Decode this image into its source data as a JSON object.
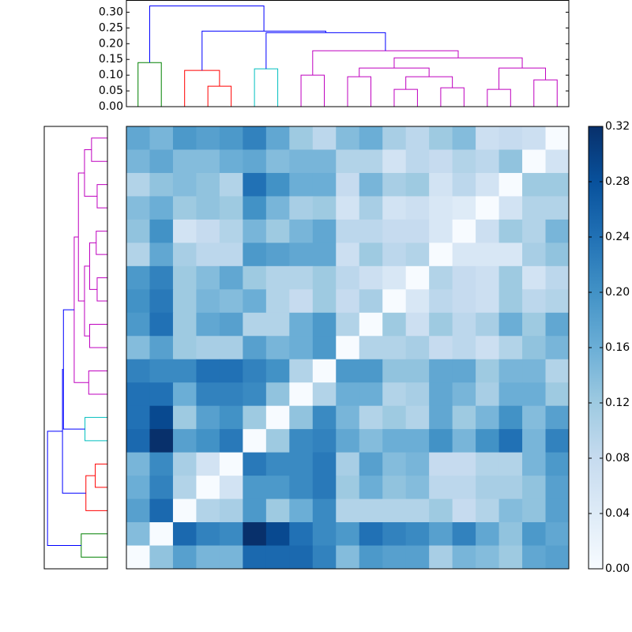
{
  "chart_data": {
    "type": "clustered-heatmap",
    "colormap": [
      "#f7fbff",
      "#deebf7",
      "#c6dbef",
      "#9ecae1",
      "#6baed6",
      "#4292c6",
      "#2171b5",
      "#08519c",
      "#08306b"
    ],
    "clim": [
      0,
      0.32
    ],
    "cticks": [
      {
        "value": 0,
        "label": "0.00"
      },
      {
        "value": 0.04,
        "label": "0.04"
      },
      {
        "value": 0.08,
        "label": "0.08"
      },
      {
        "value": 0.12,
        "label": "0.12"
      },
      {
        "value": 0.16,
        "label": "0.16"
      },
      {
        "value": 0.2,
        "label": "0.20"
      },
      {
        "value": 0.24,
        "label": "0.24"
      },
      {
        "value": 0.28,
        "label": "0.28"
      },
      {
        "value": 0.32,
        "label": "0.32"
      }
    ],
    "matrix": [
      [
        0.17,
        0.15,
        0.19,
        0.18,
        0.19,
        0.22,
        0.17,
        0.12,
        0.09,
        0.14,
        0.16,
        0.11,
        0.09,
        0.12,
        0.14,
        0.07,
        0.08,
        0.07,
        0
      ],
      [
        0.15,
        0.17,
        0.14,
        0.14,
        0.16,
        0.17,
        0.14,
        0.15,
        0.15,
        0.1,
        0.1,
        0.06,
        0.09,
        0.08,
        0.1,
        0.09,
        0.13,
        0,
        0.06
      ],
      [
        0.1,
        0.13,
        0.14,
        0.13,
        0.1,
        0.24,
        0.2,
        0.16,
        0.16,
        0.08,
        0.15,
        0.11,
        0.12,
        0.06,
        0.09,
        0.06,
        0,
        0.12,
        0.12
      ],
      [
        0.14,
        0.16,
        0.12,
        0.13,
        0.12,
        0.2,
        0.15,
        0.11,
        0.12,
        0.06,
        0.11,
        0.06,
        0.07,
        0.05,
        0.04,
        0,
        0.06,
        0.1,
        0.1
      ],
      [
        0.13,
        0.2,
        0.06,
        0.08,
        0.1,
        0.15,
        0.12,
        0.15,
        0.17,
        0.09,
        0.09,
        0.08,
        0.08,
        0.05,
        0,
        0.07,
        0.12,
        0.1,
        0.15
      ],
      [
        0.1,
        0.17,
        0.11,
        0.09,
        0.09,
        0.19,
        0.18,
        0.17,
        0.17,
        0.07,
        0.12,
        0.09,
        0.1,
        0,
        0.05,
        0.05,
        0.05,
        0.11,
        0.13
      ],
      [
        0.19,
        0.22,
        0.12,
        0.14,
        0.17,
        0.12,
        0.1,
        0.1,
        0.12,
        0.09,
        0.07,
        0.05,
        0,
        0.1,
        0.08,
        0.07,
        0.12,
        0.06,
        0.09
      ],
      [
        0.2,
        0.23,
        0.12,
        0.15,
        0.14,
        0.16,
        0.1,
        0.08,
        0.12,
        0.08,
        0.11,
        0,
        0.05,
        0.09,
        0.08,
        0.07,
        0.12,
        0.09,
        0.1
      ],
      [
        0.19,
        0.24,
        0.12,
        0.17,
        0.18,
        0.1,
        0.1,
        0.16,
        0.19,
        0.1,
        0,
        0.12,
        0.07,
        0.12,
        0.09,
        0.11,
        0.16,
        0.12,
        0.17
      ],
      [
        0.14,
        0.18,
        0.12,
        0.11,
        0.11,
        0.18,
        0.15,
        0.16,
        0.19,
        0,
        0.1,
        0.1,
        0.11,
        0.08,
        0.09,
        0.07,
        0.1,
        0.13,
        0.15
      ],
      [
        0.22,
        0.21,
        0.21,
        0.24,
        0.24,
        0.22,
        0.2,
        0.1,
        0,
        0.19,
        0.19,
        0.13,
        0.13,
        0.17,
        0.17,
        0.12,
        0.15,
        0.15,
        0.1
      ],
      [
        0.24,
        0.24,
        0.16,
        0.22,
        0.22,
        0.21,
        0.13,
        0,
        0.1,
        0.16,
        0.16,
        0.1,
        0.11,
        0.17,
        0.15,
        0.11,
        0.16,
        0.16,
        0.12
      ],
      [
        0.24,
        0.29,
        0.12,
        0.18,
        0.2,
        0.12,
        0,
        0.13,
        0.21,
        0.15,
        0.1,
        0.12,
        0.1,
        0.17,
        0.12,
        0.15,
        0.2,
        0.14,
        0.18
      ],
      [
        0.25,
        0.32,
        0.18,
        0.2,
        0.23,
        0,
        0.12,
        0.21,
        0.22,
        0.17,
        0.14,
        0.16,
        0.16,
        0.2,
        0.15,
        0.2,
        0.24,
        0.15,
        0.22
      ],
      [
        0.15,
        0.21,
        0.11,
        0.06,
        0,
        0.23,
        0.21,
        0.21,
        0.23,
        0.11,
        0.18,
        0.14,
        0.15,
        0.08,
        0.08,
        0.1,
        0.1,
        0.15,
        0.19
      ],
      [
        0.16,
        0.22,
        0.1,
        0,
        0.06,
        0.19,
        0.19,
        0.21,
        0.23,
        0.12,
        0.16,
        0.13,
        0.14,
        0.09,
        0.09,
        0.11,
        0.11,
        0.13,
        0.18
      ],
      [
        0.18,
        0.25,
        0,
        0.1,
        0.11,
        0.19,
        0.12,
        0.16,
        0.21,
        0.1,
        0.1,
        0.1,
        0.1,
        0.12,
        0.08,
        0.1,
        0.14,
        0.13,
        0.18
      ],
      [
        0.14,
        0,
        0.25,
        0.22,
        0.21,
        0.32,
        0.29,
        0.24,
        0.21,
        0.19,
        0.24,
        0.22,
        0.21,
        0.18,
        0.22,
        0.17,
        0.13,
        0.19,
        0.17
      ],
      [
        0,
        0.13,
        0.18,
        0.15,
        0.15,
        0.25,
        0.25,
        0.25,
        0.22,
        0.14,
        0.19,
        0.18,
        0.18,
        0.11,
        0.15,
        0.14,
        0.12,
        0.17,
        0.18
      ]
    ],
    "dendrogram": {
      "leaves": 19,
      "ylim": [
        0,
        0.3375
      ],
      "yticks": [
        {
          "value": 0,
          "label": "0.00"
        },
        {
          "value": 0.05,
          "label": "0.05"
        },
        {
          "value": 0.1,
          "label": "0.10"
        },
        {
          "value": 0.15,
          "label": "0.15"
        },
        {
          "value": 0.2,
          "label": "0.20"
        },
        {
          "value": 0.25,
          "label": "0.25"
        },
        {
          "value": 0.3,
          "label": "0.30"
        }
      ],
      "links": [
        {
          "color": "#008000",
          "x": [
            0,
            0,
            1,
            1
          ],
          "y": [
            0,
            0.14,
            0.14,
            0
          ]
        },
        {
          "color": "#ff0000",
          "x": [
            3,
            3,
            4,
            4
          ],
          "y": [
            0,
            0.065,
            0.065,
            0
          ]
        },
        {
          "color": "#ff0000",
          "x": [
            2,
            2,
            3.5,
            3.5
          ],
          "y": [
            0,
            0.115,
            0.115,
            0.065
          ]
        },
        {
          "color": "#00bfbf",
          "x": [
            5,
            5,
            6,
            6
          ],
          "y": [
            0,
            0.12,
            0.12,
            0
          ]
        },
        {
          "color": "#bf00bf",
          "x": [
            7,
            7,
            8,
            8
          ],
          "y": [
            0,
            0.1,
            0.1,
            0
          ]
        },
        {
          "color": "#bf00bf",
          "x": [
            9,
            9,
            10,
            10
          ],
          "y": [
            0,
            0.095,
            0.095,
            0
          ]
        },
        {
          "color": "#bf00bf",
          "x": [
            11,
            11,
            12,
            12
          ],
          "y": [
            0,
            0.055,
            0.055,
            0
          ]
        },
        {
          "color": "#bf00bf",
          "x": [
            13,
            13,
            14,
            14
          ],
          "y": [
            0,
            0.06,
            0.06,
            0
          ]
        },
        {
          "color": "#bf00bf",
          "x": [
            11.5,
            11.5,
            13.5,
            13.5
          ],
          "y": [
            0.055,
            0.095,
            0.095,
            0.06
          ]
        },
        {
          "color": "#bf00bf",
          "x": [
            9.5,
            9.5,
            12.5,
            12.5
          ],
          "y": [
            0.095,
            0.1225,
            0.1225,
            0.095
          ]
        },
        {
          "color": "#bf00bf",
          "x": [
            15,
            15,
            16,
            16
          ],
          "y": [
            0,
            0.055,
            0.055,
            0
          ]
        },
        {
          "color": "#bf00bf",
          "x": [
            17,
            17,
            18,
            18
          ],
          "y": [
            0,
            0.085,
            0.085,
            0
          ]
        },
        {
          "color": "#bf00bf",
          "x": [
            15.5,
            15.5,
            17.5,
            17.5
          ],
          "y": [
            0.055,
            0.1225,
            0.1225,
            0.085
          ]
        },
        {
          "color": "#bf00bf",
          "x": [
            11,
            11,
            16.5,
            16.5
          ],
          "y": [
            0.1225,
            0.155,
            0.155,
            0.1225
          ]
        },
        {
          "color": "#bf00bf",
          "x": [
            7.5,
            7.5,
            13.75,
            13.75
          ],
          "y": [
            0.1,
            0.1775,
            0.1775,
            0.155
          ]
        },
        {
          "color": "#0000ff",
          "x": [
            5.5,
            5.5,
            10.625,
            10.625
          ],
          "y": [
            0.12,
            0.235,
            0.235,
            0.1775
          ]
        },
        {
          "color": "#0000ff",
          "x": [
            2.75,
            2.75,
            8.0625,
            8.0625
          ],
          "y": [
            0.115,
            0.24,
            0.24,
            0.235
          ]
        },
        {
          "color": "#0000ff",
          "x": [
            0.5,
            0.5,
            5.40625,
            5.40625
          ],
          "y": [
            0.14,
            0.32,
            0.32,
            0.24
          ]
        }
      ]
    }
  }
}
